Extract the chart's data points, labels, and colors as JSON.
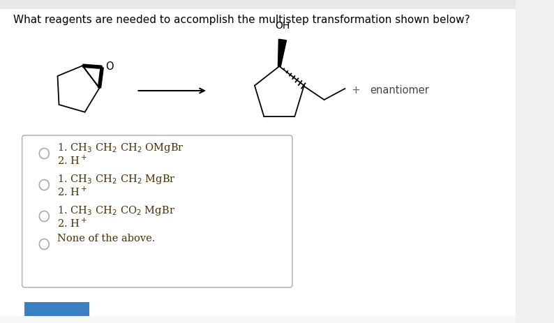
{
  "title": "What reagents are needed to accomplish the multistep transformation shown below?",
  "title_fontsize": 11.0,
  "bg_color": "#f0f0f0",
  "panel_bg": "#ffffff",
  "box_bg": "#ffffff",
  "text_color": "#000000",
  "option_text_color": "#4a3000",
  "options": [
    {
      "line1": "1. CH$_3$ CH$_2$ CH$_2$ OMgBr",
      "line2": "2. H$^+$"
    },
    {
      "line1": "1. CH$_3$ CH$_2$ CH$_2$ MgBr",
      "line2": "2. H$^+$"
    },
    {
      "line1": "1. CH$_3$ CH$_2$ CO$_2$ MgBr",
      "line2": "2. H$^+$"
    },
    {
      "line1": "None of the above.",
      "line2": ""
    }
  ],
  "enantiomer_text": "enantiomer",
  "plus_text": "+",
  "oh_text": "OH",
  "o_text": "O"
}
